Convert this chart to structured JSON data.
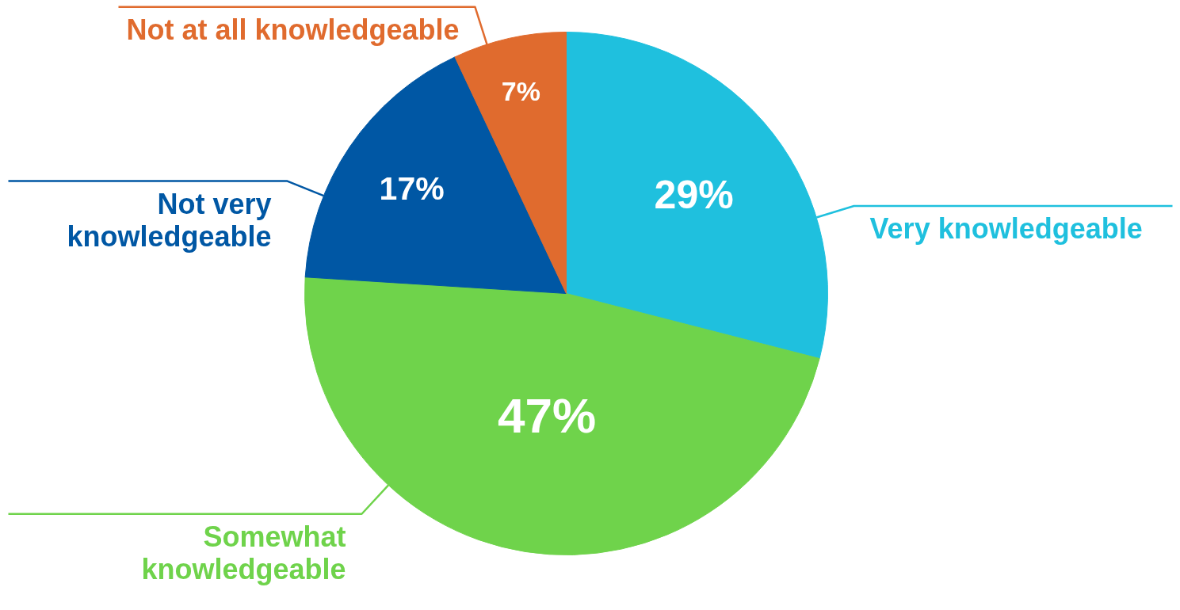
{
  "chart_data": {
    "type": "pie",
    "categories": [
      "Very knowledgeable",
      "Somewhat\nknowledgeable",
      "Not very\nknowledgeable",
      "Not at all knowledgeable"
    ],
    "values": [
      29,
      47,
      17,
      7
    ],
    "colors": [
      "#1fc0de",
      "#6fd34b",
      "#0057a4",
      "#e06b2e"
    ],
    "value_labels": [
      "29%",
      "47%",
      "17%",
      "7%"
    ]
  }
}
